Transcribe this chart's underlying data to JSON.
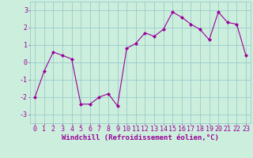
{
  "x": [
    0,
    1,
    2,
    3,
    4,
    5,
    6,
    7,
    8,
    9,
    10,
    11,
    12,
    13,
    14,
    15,
    16,
    17,
    18,
    19,
    20,
    21,
    22,
    23
  ],
  "y": [
    -2.0,
    -0.5,
    0.6,
    0.4,
    0.2,
    -2.4,
    -2.4,
    -2.0,
    -1.8,
    -2.5,
    0.8,
    1.1,
    1.7,
    1.5,
    1.9,
    2.9,
    2.6,
    2.2,
    1.9,
    1.3,
    2.9,
    2.3,
    2.2,
    0.4
  ],
  "line_color": "#990099",
  "marker": "D",
  "marker_size": 2.0,
  "bg_color": "#cceedd",
  "grid_color": "#99cccc",
  "xlabel": "Windchill (Refroidissement éolien,°C)",
  "xlabel_fontsize": 6.5,
  "tick_label_fontsize": 6.0,
  "ylim": [
    -3.5,
    3.5
  ],
  "yticks": [
    -3,
    -2,
    -1,
    0,
    1,
    2,
    3
  ],
  "xlim": [
    -0.5,
    23.5
  ],
  "xticks": [
    0,
    1,
    2,
    3,
    4,
    5,
    6,
    7,
    8,
    9,
    10,
    11,
    12,
    13,
    14,
    15,
    16,
    17,
    18,
    19,
    20,
    21,
    22,
    23
  ]
}
